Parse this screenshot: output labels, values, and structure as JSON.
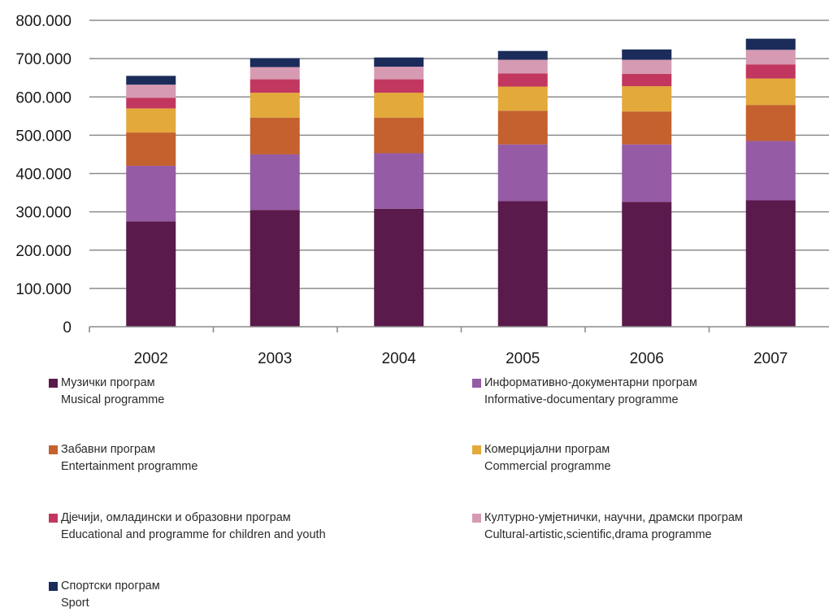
{
  "chart_data": {
    "type": "bar",
    "stacked": true,
    "categories": [
      "2002",
      "2003",
      "2004",
      "2005",
      "2006",
      "2007"
    ],
    "ylim": [
      0,
      800000
    ],
    "yticks": [
      {
        "value": 0,
        "label": "0"
      },
      {
        "value": 100000,
        "label": "100.000"
      },
      {
        "value": 200000,
        "label": "200.000"
      },
      {
        "value": 300000,
        "label": "300.000"
      },
      {
        "value": 400000,
        "label": "400.000"
      },
      {
        "value": 500000,
        "label": "500.000"
      },
      {
        "value": 600000,
        "label": "600.000"
      },
      {
        "value": 700000,
        "label": "700.000"
      },
      {
        "value": 800000,
        "label": "800.000"
      }
    ],
    "grid": true,
    "legend_position": "bottom",
    "series": [
      {
        "name": "Музички програм",
        "name_en": "Musical programme",
        "color": "#5a1a4b",
        "values": [
          275000,
          305000,
          308000,
          328000,
          326000,
          330000
        ]
      },
      {
        "name": "Информативно-документарни програм",
        "name_en": "Informative-documentary programme",
        "color": "#955ba5",
        "values": [
          145000,
          145000,
          145000,
          148000,
          150000,
          155000
        ]
      },
      {
        "name": "Забавни програм",
        "name_en": "Entertainment programme",
        "color": "#c4612e",
        "values": [
          87000,
          96000,
          93000,
          88000,
          86000,
          94000
        ]
      },
      {
        "name": "Комерцијални програм",
        "name_en": "Commercial programme",
        "color": "#e3a93a",
        "values": [
          63000,
          65000,
          65000,
          63000,
          66000,
          69000
        ]
      },
      {
        "name": "Дјечији, омладински и образовни програм",
        "name_en": "Educational and programme for children and youth",
        "color": "#c2375f",
        "values": [
          28000,
          35000,
          35000,
          34000,
          32000,
          37000
        ]
      },
      {
        "name": "Културно-умјетнички, научни, драмски програм",
        "name_en": "Cultural-artistic,scientific,drama programme",
        "color": "#d79ab3",
        "values": [
          34000,
          32000,
          33000,
          36000,
          37000,
          38000
        ]
      },
      {
        "name": "Спортски програм",
        "name_en": "Sport",
        "color": "#1b2c5a",
        "values": [
          23000,
          23000,
          24000,
          23000,
          27000,
          29000
        ]
      }
    ]
  }
}
